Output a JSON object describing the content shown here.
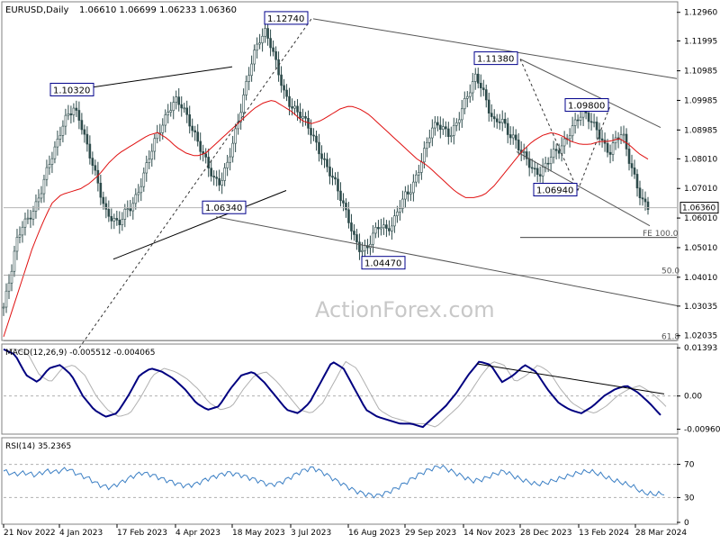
{
  "header": {
    "symbol": "EURUSD,Daily",
    "ohlc": "1.06610 1.06699 1.06233 1.06360"
  },
  "watermark": "ActionForex.com",
  "colors": {
    "candle": "#2c4a4a",
    "sma": "#e01010",
    "trendline": "#000000",
    "channel": "#555555",
    "macd": "#000080",
    "signal": "#b0b0b0",
    "rsi": "#3b7fc4",
    "label_border": "#00008b",
    "grid": "#b4b4b4"
  },
  "chart_data": [
    {
      "type": "candlestick",
      "panel": "price",
      "ylim": [
        1.01935,
        1.13255
      ],
      "x_tick_labels": [
        "21 Nov 2022",
        "4 Jan 2023",
        "17 Feb 2023",
        "4 Apr 2023",
        "18 May 2023",
        "3 Jul 2023",
        "16 Aug 2023",
        "29 Sep 2023",
        "14 Nov 2023",
        "28 Dec 2023",
        "13 Feb 2024",
        "28 Mar 2024"
      ],
      "y_tick_labels": [
        "1.12960",
        "1.11995",
        "1.10985",
        "1.09985",
        "1.08985",
        "1.08010",
        "1.07010",
        "1.06010",
        "1.05010",
        "1.04010",
        "1.03035",
        "1.02035"
      ],
      "current_price_label": "1.06360",
      "current_price": 1.0636,
      "price_labels": [
        {
          "text": "1.10320",
          "price": 1.1032
        },
        {
          "text": "1.12740",
          "price": 1.1274
        },
        {
          "text": "1.11380",
          "price": 1.1138
        },
        {
          "text": "1.09800",
          "price": 1.098
        },
        {
          "text": "1.06940",
          "price": 1.0694
        },
        {
          "text": "1.06340",
          "price": 1.0634
        },
        {
          "text": "1.04470",
          "price": 1.0447
        }
      ],
      "fib_levels": [
        {
          "text": "FE 100.0",
          "price": 1.0535
        },
        {
          "text": "50.0",
          "price": 1.0408
        },
        {
          "text": "61.8",
          "price": 1.0186
        }
      ],
      "close_path": [
        1.03,
        1.04,
        1.052,
        1.058,
        1.06,
        1.064,
        1.07,
        1.078,
        1.083,
        1.09,
        1.095,
        1.097,
        1.093,
        1.085,
        1.078,
        1.07,
        1.062,
        1.06,
        1.058,
        1.062,
        1.064,
        1.068,
        1.075,
        1.082,
        1.088,
        1.092,
        1.097,
        1.1,
        1.098,
        1.093,
        1.088,
        1.083,
        1.078,
        1.073,
        1.072,
        1.078,
        1.086,
        1.095,
        1.105,
        1.114,
        1.12,
        1.123,
        1.118,
        1.11,
        1.102,
        1.098,
        1.096,
        1.094,
        1.09,
        1.085,
        1.08,
        1.076,
        1.072,
        1.066,
        1.06,
        1.053,
        1.049,
        1.05,
        1.055,
        1.058,
        1.056,
        1.058,
        1.064,
        1.068,
        1.07,
        1.076,
        1.083,
        1.09,
        1.092,
        1.09,
        1.088,
        1.092,
        1.098,
        1.103,
        1.108,
        1.104,
        1.097,
        1.092,
        1.094,
        1.089,
        1.087,
        1.083,
        1.08,
        1.076,
        1.075,
        1.078,
        1.082,
        1.083,
        1.086,
        1.09,
        1.094,
        1.096,
        1.093,
        1.09,
        1.085,
        1.082,
        1.087,
        1.089,
        1.08,
        1.073,
        1.066,
        1.064
      ],
      "sma_path": [
        1.02,
        1.03,
        1.04,
        1.05,
        1.058,
        1.065,
        1.068,
        1.069,
        1.07,
        1.072,
        1.075,
        1.079,
        1.082,
        1.084,
        1.086,
        1.088,
        1.089,
        1.087,
        1.084,
        1.082,
        1.081,
        1.082,
        1.085,
        1.088,
        1.091,
        1.094,
        1.097,
        1.099,
        1.1,
        1.098,
        1.096,
        1.093,
        1.092,
        1.093,
        1.095,
        1.097,
        1.098,
        1.097,
        1.095,
        1.092,
        1.089,
        1.086,
        1.083,
        1.08,
        1.078,
        1.075,
        1.072,
        1.069,
        1.067,
        1.067,
        1.068,
        1.071,
        1.075,
        1.079,
        1.083,
        1.086,
        1.088,
        1.089,
        1.088,
        1.086,
        1.085,
        1.085,
        1.086,
        1.086,
        1.087,
        1.085,
        1.082,
        1.08
      ]
    },
    {
      "type": "line",
      "panel": "macd",
      "label": "MACD(12,26,9) -0.005512 -0.004065",
      "ylim": [
        -0.0105,
        0.0145
      ],
      "y_tick_labels": [
        "0.01393",
        "0.00",
        "-0.009602"
      ],
      "macd_path": [
        0.0135,
        0.012,
        0.006,
        0.004,
        0.008,
        0.009,
        0.006,
        0.0,
        -0.004,
        -0.006,
        -0.005,
        0.0,
        0.006,
        0.008,
        0.007,
        0.005,
        0.002,
        -0.002,
        -0.004,
        -0.003,
        0.002,
        0.006,
        0.007,
        0.004,
        0.0,
        -0.004,
        -0.005,
        -0.002,
        0.004,
        0.01,
        0.008,
        0.002,
        -0.004,
        -0.006,
        -0.007,
        -0.008,
        -0.008,
        -0.009,
        -0.006,
        -0.003,
        0.001,
        0.006,
        0.01,
        0.009,
        0.004,
        0.006,
        0.009,
        0.007,
        0.002,
        -0.002,
        -0.004,
        -0.005,
        -0.003,
        0.0,
        0.002,
        0.003,
        0.001,
        -0.002,
        -0.0055
      ]
    },
    {
      "type": "line",
      "panel": "rsi",
      "label": "RSI(14) 35.2365",
      "ylim": [
        0,
        100
      ],
      "y_tick_labels": [
        "70",
        "30",
        "0"
      ],
      "levels": [
        70,
        30
      ],
      "rsi_path": [
        62,
        58,
        60,
        57,
        62,
        61,
        65,
        58,
        53,
        45,
        42,
        48,
        55,
        60,
        57,
        52,
        48,
        44,
        46,
        52,
        56,
        60,
        58,
        54,
        50,
        45,
        48,
        55,
        62,
        66,
        60,
        52,
        45,
        38,
        34,
        32,
        36,
        42,
        50,
        58,
        64,
        68,
        62,
        56,
        50,
        52,
        58,
        62,
        55,
        50,
        46,
        48,
        52,
        56,
        60,
        62,
        58,
        52,
        48,
        44,
        36,
        34,
        35
      ]
    }
  ]
}
